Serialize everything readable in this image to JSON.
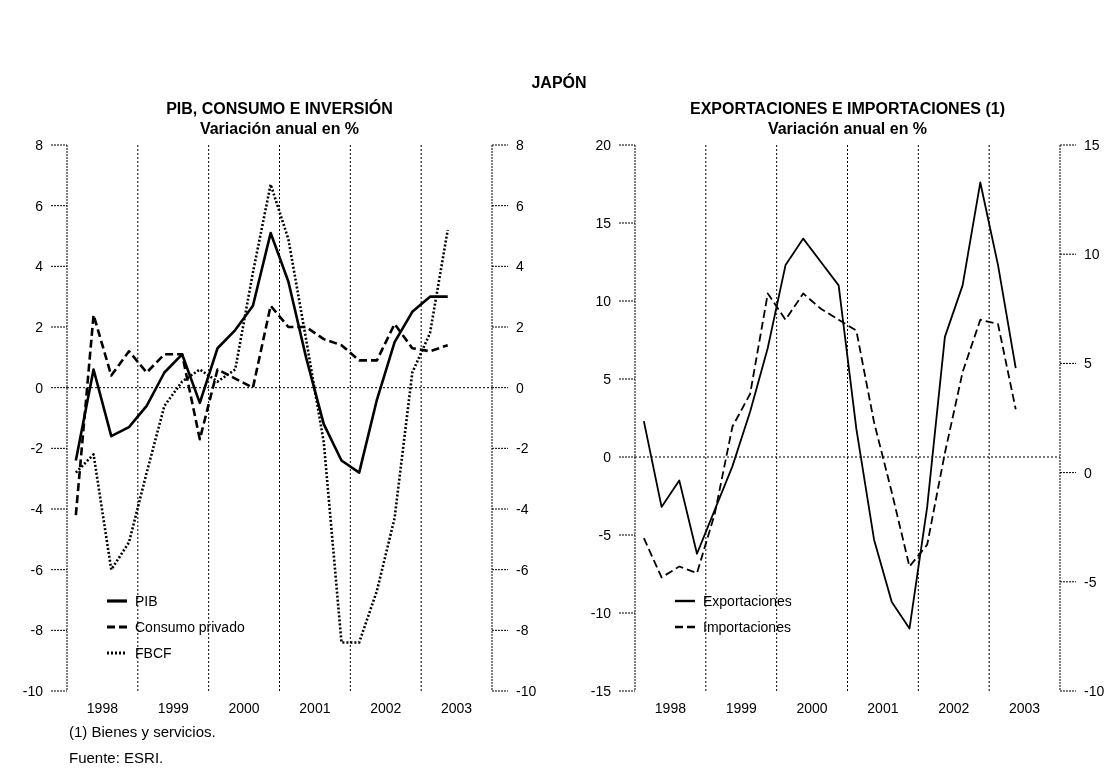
{
  "chart_data": [
    {
      "type": "line",
      "title": "PIB, CONSUMO E INVERSIÓN",
      "subtitle": "Variación anual en %",
      "annotations": [
        "JAPÓN",
        "(1) Bienes y servicios.",
        "Fuente: ESRI."
      ],
      "x": [
        1998.125,
        1998.375,
        1998.625,
        1998.875,
        1999.125,
        1999.375,
        1999.625,
        1999.875,
        2000.125,
        2000.375,
        2000.625,
        2000.875,
        2001.125,
        2001.375,
        2001.625,
        2001.875,
        2002.125,
        2002.375,
        2002.625,
        2002.875,
        2003.125,
        2003.375
      ],
      "xlim": [
        1998,
        2004
      ],
      "xticks": [
        {
          "value": 1998.5,
          "label": "1998"
        },
        {
          "value": 1999.5,
          "label": "1999"
        },
        {
          "value": 2000.5,
          "label": "2000"
        },
        {
          "value": 2001.5,
          "label": "2001"
        },
        {
          "value": 2002.5,
          "label": "2002"
        },
        {
          "value": 2003.5,
          "label": "2003"
        }
      ],
      "ylim": [
        -10,
        8
      ],
      "yticks": [
        -10,
        -8,
        -6,
        -4,
        -2,
        0,
        2,
        4,
        6,
        8
      ],
      "y2lim": [
        -10,
        8
      ],
      "y2ticks": [
        -10,
        -8,
        -6,
        -4,
        -2,
        0,
        2,
        4,
        6,
        8
      ],
      "series": [
        {
          "name": "PIB",
          "color": "#000000",
          "line_style": "solid",
          "values": [
            -2.4,
            0.6,
            -1.6,
            -1.3,
            -0.6,
            0.5,
            1.1,
            -0.5,
            1.3,
            1.9,
            2.7,
            5.1,
            3.5,
            1.0,
            -1.2,
            -2.4,
            -2.8,
            -0.4,
            1.5,
            2.5,
            3.0,
            3.0
          ]
        },
        {
          "name": "Consumo privado",
          "color": "#000000",
          "line_style": "dashed",
          "values": [
            -4.2,
            2.4,
            0.4,
            1.2,
            0.5,
            1.1,
            1.1,
            -1.7,
            0.6,
            0.3,
            0.0,
            2.7,
            2.0,
            2.0,
            1.6,
            1.4,
            0.9,
            0.9,
            2.1,
            1.3,
            1.2,
            1.4
          ]
        },
        {
          "name": "FBCF",
          "color": "#000000",
          "line_style": "dotted",
          "values": [
            -2.8,
            -2.2,
            -6.0,
            -5.1,
            -2.8,
            -0.6,
            0.2,
            0.6,
            0.2,
            0.6,
            3.8,
            6.7,
            4.9,
            1.6,
            -1.8,
            -8.4,
            -8.4,
            -6.7,
            -4.3,
            0.5,
            1.8,
            5.2
          ]
        }
      ],
      "legend": "bottom left",
      "ref_lines": [
        {
          "axis": "y",
          "value": 0,
          "line_style": "dotted"
        },
        {
          "axis": "x",
          "value": 1999,
          "line_style": "dotted"
        },
        {
          "axis": "x",
          "value": 2000,
          "line_style": "dotted"
        },
        {
          "axis": "x",
          "value": 2001,
          "line_style": "dotted"
        },
        {
          "axis": "x",
          "value": 2002,
          "line_style": "dotted"
        },
        {
          "axis": "x",
          "value": 2003,
          "line_style": "dotted"
        }
      ]
    },
    {
      "type": "line",
      "title": "EXPORTACIONES E IMPORTACIONES (1)",
      "subtitle": "Variación anual en %",
      "x": [
        1998.125,
        1998.375,
        1998.625,
        1998.875,
        1999.125,
        1999.375,
        1999.625,
        1999.875,
        2000.125,
        2000.375,
        2000.625,
        2000.875,
        2001.125,
        2001.375,
        2001.625,
        2001.875,
        2002.125,
        2002.375,
        2002.625,
        2002.875,
        2003.125,
        2003.375
      ],
      "xlim": [
        1998,
        2004
      ],
      "xticks": [
        {
          "value": 1998.5,
          "label": "1998"
        },
        {
          "value": 1999.5,
          "label": "1999"
        },
        {
          "value": 2000.5,
          "label": "2000"
        },
        {
          "value": 2001.5,
          "label": "2001"
        },
        {
          "value": 2002.5,
          "label": "2002"
        },
        {
          "value": 2003.5,
          "label": "2003"
        }
      ],
      "ylim": [
        -15,
        20
      ],
      "yticks": [
        -15,
        -10,
        -5,
        0,
        5,
        10,
        15,
        20
      ],
      "y2lim": [
        -10,
        15
      ],
      "y2ticks": [
        -10,
        -5,
        0,
        5,
        10,
        15
      ],
      "series": [
        {
          "name": "Exportaciones",
          "color": "#000000",
          "line_style": "solid",
          "values": [
            2.3,
            -3.2,
            -1.5,
            -6.2,
            -3.4,
            -0.6,
            2.9,
            7.0,
            12.3,
            14.0,
            12.5,
            11.0,
            1.8,
            -5.3,
            -9.3,
            -11.0,
            -3.2,
            7.7,
            11.0,
            17.6,
            12.3,
            5.7
          ]
        },
        {
          "name": "Importaciones",
          "color": "#000000",
          "line_style": "dashed",
          "axis": "y2",
          "values": [
            -3.0,
            -4.8,
            -4.3,
            -4.6,
            -1.9,
            2.1,
            3.6,
            8.2,
            7.0,
            8.2,
            7.5,
            7.0,
            6.5,
            2.3,
            -0.9,
            -4.3,
            -3.3,
            0.9,
            4.6,
            7.0,
            6.8,
            2.9
          ]
        }
      ],
      "legend": "bottom left",
      "ref_lines": [
        {
          "axis": "y",
          "value": 0,
          "line_style": "dotted"
        },
        {
          "axis": "x",
          "value": 1999,
          "line_style": "dotted"
        },
        {
          "axis": "x",
          "value": 2000,
          "line_style": "dotted"
        },
        {
          "axis": "x",
          "value": 2001,
          "line_style": "dotted"
        },
        {
          "axis": "x",
          "value": 2002,
          "line_style": "dotted"
        },
        {
          "axis": "x",
          "value": 2003,
          "line_style": "dotted"
        }
      ]
    }
  ]
}
